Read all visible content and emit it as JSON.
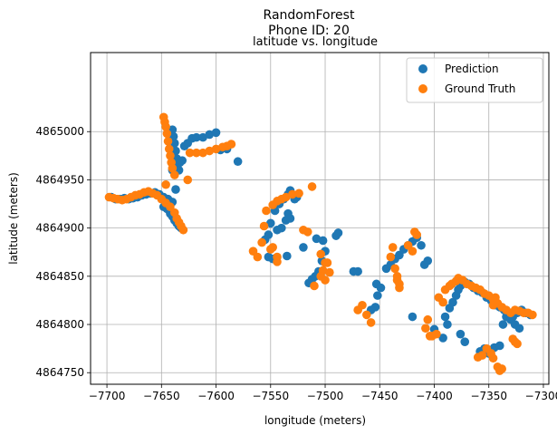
{
  "chart_data": {
    "type": "scatter",
    "suptitle_line1": "RandomForest",
    "suptitle_line2": "Phone ID: 20",
    "title": "latitude vs. longitude",
    "xlabel": "longitude (meters)",
    "ylabel": "latitude (meters)",
    "xlim": [
      -7715,
      -7295
    ],
    "ylim": [
      4864738,
      4865082
    ],
    "xticks": [
      -7700,
      -7650,
      -7600,
      -7550,
      -7500,
      -7450,
      -7400,
      -7350,
      -7300
    ],
    "yticks": [
      4864750,
      4864800,
      4864850,
      4864900,
      4864950,
      4865000
    ],
    "grid": true,
    "legend": "top-right",
    "series": [
      {
        "name": "Prediction",
        "color": "#1f77b4",
        "points": [
          [
            -7696,
            4864932
          ],
          [
            -7692,
            4864930
          ],
          [
            -7688,
            4864930
          ],
          [
            -7684,
            4864931
          ],
          [
            -7680,
            4864930
          ],
          [
            -7676,
            4864931
          ],
          [
            -7672,
            4864932
          ],
          [
            -7668,
            4864934
          ],
          [
            -7664,
            4864935
          ],
          [
            -7660,
            4864936
          ],
          [
            -7656,
            4864937
          ],
          [
            -7652,
            4864935
          ],
          [
            -7648,
            4864932
          ],
          [
            -7644,
            4864930
          ],
          [
            -7640,
            4864927
          ],
          [
            -7645,
            4864920
          ],
          [
            -7648,
            4864922
          ],
          [
            -7642,
            4864915
          ],
          [
            -7640,
            4864912
          ],
          [
            -7638,
            4864908
          ],
          [
            -7636,
            4864905
          ],
          [
            -7634,
            4864902
          ],
          [
            -7632,
            4864900
          ],
          [
            -7640,
            4865002
          ],
          [
            -7639,
            4864995
          ],
          [
            -7638,
            4864988
          ],
          [
            -7637,
            4864980
          ],
          [
            -7636,
            4864972
          ],
          [
            -7635,
            4864966
          ],
          [
            -7634,
            4864960
          ],
          [
            -7633,
            4864968
          ],
          [
            -7631,
            4864970
          ],
          [
            -7629,
            4864985
          ],
          [
            -7626,
            4864988
          ],
          [
            -7622,
            4864993
          ],
          [
            -7618,
            4864994
          ],
          [
            -7612,
            4864994
          ],
          [
            -7606,
            4864997
          ],
          [
            -7600,
            4864999
          ],
          [
            -7596,
            4864981
          ],
          [
            -7590,
            4864982
          ],
          [
            -7580,
            4864969
          ],
          [
            -7640,
            4864960
          ],
          [
            -7637,
            4864940
          ],
          [
            -7555,
            4864888
          ],
          [
            -7552,
            4864893
          ],
          [
            -7550,
            4864905
          ],
          [
            -7546,
            4864918
          ],
          [
            -7542,
            4864925
          ],
          [
            -7538,
            4864930
          ],
          [
            -7534,
            4864935
          ],
          [
            -7532,
            4864939
          ],
          [
            -7528,
            4864930
          ],
          [
            -7526,
            4864932
          ],
          [
            -7540,
            4864900
          ],
          [
            -7544,
            4864898
          ],
          [
            -7536,
            4864908
          ],
          [
            -7534,
            4864915
          ],
          [
            -7532,
            4864910
          ],
          [
            -7552,
            4864870
          ],
          [
            -7548,
            4864868
          ],
          [
            -7535,
            4864871
          ],
          [
            -7520,
            4864880
          ],
          [
            -7508,
            4864889
          ],
          [
            -7502,
            4864887
          ],
          [
            -7500,
            4864876
          ],
          [
            -7503,
            4864866
          ],
          [
            -7506,
            4864855
          ],
          [
            -7509,
            4864850
          ],
          [
            -7512,
            4864847
          ],
          [
            -7515,
            4864843
          ],
          [
            -7490,
            4864892
          ],
          [
            -7488,
            4864895
          ],
          [
            -7474,
            4864855
          ],
          [
            -7470,
            4864855
          ],
          [
            -7453,
            4864842
          ],
          [
            -7449,
            4864838
          ],
          [
            -7452,
            4864830
          ],
          [
            -7454,
            4864818
          ],
          [
            -7458,
            4864815
          ],
          [
            -7444,
            4864858
          ],
          [
            -7440,
            4864862
          ],
          [
            -7436,
            4864868
          ],
          [
            -7432,
            4864872
          ],
          [
            -7428,
            4864878
          ],
          [
            -7424,
            4864882
          ],
          [
            -7420,
            4864886
          ],
          [
            -7416,
            4864890
          ],
          [
            -7412,
            4864882
          ],
          [
            -7409,
            4864862
          ],
          [
            -7406,
            4864866
          ],
          [
            -7420,
            4864808
          ],
          [
            -7390,
            4864808
          ],
          [
            -7386,
            4864817
          ],
          [
            -7383,
            4864823
          ],
          [
            -7380,
            4864830
          ],
          [
            -7378,
            4864836
          ],
          [
            -7376,
            4864840
          ],
          [
            -7372,
            4864844
          ],
          [
            -7368,
            4864842
          ],
          [
            -7364,
            4864838
          ],
          [
            -7360,
            4864835
          ],
          [
            -7356,
            4864833
          ],
          [
            -7352,
            4864828
          ],
          [
            -7348,
            4864825
          ],
          [
            -7344,
            4864820
          ],
          [
            -7340,
            4864818
          ],
          [
            -7336,
            4864815
          ],
          [
            -7332,
            4864812
          ],
          [
            -7328,
            4864808
          ],
          [
            -7324,
            4864812
          ],
          [
            -7320,
            4864815
          ],
          [
            -7316,
            4864812
          ],
          [
            -7312,
            4864810
          ],
          [
            -7392,
            4864786
          ],
          [
            -7388,
            4864800
          ],
          [
            -7376,
            4864790
          ],
          [
            -7372,
            4864782
          ],
          [
            -7350,
            4864770
          ],
          [
            -7345,
            4864776
          ],
          [
            -7340,
            4864778
          ],
          [
            -7337,
            4864800
          ],
          [
            -7334,
            4864808
          ],
          [
            -7330,
            4864805
          ],
          [
            -7326,
            4864800
          ],
          [
            -7322,
            4864796
          ],
          [
            -7358,
            4864772
          ],
          [
            -7354,
            4864775
          ],
          [
            -7400,
            4864795
          ]
        ]
      },
      {
        "name": "Ground Truth",
        "color": "#ff7f0e",
        "points": [
          [
            -7698,
            4864932
          ],
          [
            -7694,
            4864931
          ],
          [
            -7690,
            4864930
          ],
          [
            -7686,
            4864929
          ],
          [
            -7682,
            4864930
          ],
          [
            -7678,
            4864932
          ],
          [
            -7674,
            4864934
          ],
          [
            -7670,
            4864935
          ],
          [
            -7666,
            4864937
          ],
          [
            -7662,
            4864938
          ],
          [
            -7658,
            4864936
          ],
          [
            -7654,
            4864934
          ],
          [
            -7650,
            4864930
          ],
          [
            -7646,
            4864926
          ],
          [
            -7642,
            4864922
          ],
          [
            -7638,
            4864916
          ],
          [
            -7636,
            4864910
          ],
          [
            -7634,
            4864906
          ],
          [
            -7632,
            4864902
          ],
          [
            -7630,
            4864898
          ],
          [
            -7648,
            4865015
          ],
          [
            -7647,
            4865010
          ],
          [
            -7646,
            4865005
          ],
          [
            -7645,
            4864998
          ],
          [
            -7644,
            4864990
          ],
          [
            -7643,
            4864982
          ],
          [
            -7642,
            4864975
          ],
          [
            -7641,
            4864968
          ],
          [
            -7640,
            4864962
          ],
          [
            -7638,
            4864955
          ],
          [
            -7646,
            4864945
          ],
          [
            -7626,
            4864950
          ],
          [
            -7624,
            4864978
          ],
          [
            -7618,
            4864978
          ],
          [
            -7612,
            4864978
          ],
          [
            -7606,
            4864980
          ],
          [
            -7600,
            4864982
          ],
          [
            -7594,
            4864984
          ],
          [
            -7590,
            4864985
          ],
          [
            -7586,
            4864987
          ],
          [
            -7566,
            4864876
          ],
          [
            -7562,
            4864870
          ],
          [
            -7558,
            4864885
          ],
          [
            -7556,
            4864902
          ],
          [
            -7554,
            4864918
          ],
          [
            -7548,
            4864924
          ],
          [
            -7544,
            4864928
          ],
          [
            -7540,
            4864930
          ],
          [
            -7536,
            4864932
          ],
          [
            -7530,
            4864935
          ],
          [
            -7524,
            4864936
          ],
          [
            -7512,
            4864943
          ],
          [
            -7548,
            4864880
          ],
          [
            -7550,
            4864878
          ],
          [
            -7544,
            4864870
          ],
          [
            -7544,
            4864865
          ],
          [
            -7516,
            4864896
          ],
          [
            -7520,
            4864898
          ],
          [
            -7504,
            4864873
          ],
          [
            -7500,
            4864864
          ],
          [
            -7502,
            4864856
          ],
          [
            -7504,
            4864850
          ],
          [
            -7500,
            4864846
          ],
          [
            -7496,
            4864854
          ],
          [
            -7498,
            4864864
          ],
          [
            -7510,
            4864840
          ],
          [
            -7470,
            4864815
          ],
          [
            -7466,
            4864820
          ],
          [
            -7462,
            4864810
          ],
          [
            -7458,
            4864802
          ],
          [
            -7440,
            4864870
          ],
          [
            -7438,
            4864880
          ],
          [
            -7436,
            4864858
          ],
          [
            -7434,
            4864850
          ],
          [
            -7432,
            4864838
          ],
          [
            -7424,
            4864882
          ],
          [
            -7420,
            4864876
          ],
          [
            -7418,
            4864896
          ],
          [
            -7416,
            4864893
          ],
          [
            -7434,
            4864846
          ],
          [
            -7432,
            4864842
          ],
          [
            -7402,
            4864788
          ],
          [
            -7404,
            4864788
          ],
          [
            -7398,
            4864790
          ],
          [
            -7396,
            4864828
          ],
          [
            -7392,
            4864823
          ],
          [
            -7390,
            4864836
          ],
          [
            -7386,
            4864840
          ],
          [
            -7384,
            4864842
          ],
          [
            -7380,
            4864845
          ],
          [
            -7378,
            4864848
          ],
          [
            -7374,
            4864846
          ],
          [
            -7370,
            4864842
          ],
          [
            -7366,
            4864840
          ],
          [
            -7362,
            4864838
          ],
          [
            -7358,
            4864836
          ],
          [
            -7354,
            4864832
          ],
          [
            -7350,
            4864830
          ],
          [
            -7346,
            4864826
          ],
          [
            -7342,
            4864822
          ],
          [
            -7338,
            4864818
          ],
          [
            -7334,
            4864815
          ],
          [
            -7330,
            4864812
          ],
          [
            -7326,
            4864815
          ],
          [
            -7322,
            4864814
          ],
          [
            -7318,
            4864812
          ],
          [
            -7314,
            4864812
          ],
          [
            -7310,
            4864810
          ],
          [
            -7406,
            4864805
          ],
          [
            -7408,
            4864796
          ],
          [
            -7352,
            4864775
          ],
          [
            -7348,
            4864770
          ],
          [
            -7346,
            4864765
          ],
          [
            -7342,
            4864756
          ],
          [
            -7340,
            4864752
          ],
          [
            -7338,
            4864754
          ],
          [
            -7328,
            4864785
          ],
          [
            -7326,
            4864782
          ],
          [
            -7324,
            4864780
          ],
          [
            -7360,
            4864766
          ],
          [
            -7356,
            4864768
          ],
          [
            -7346,
            4864820
          ],
          [
            -7344,
            4864828
          ]
        ]
      }
    ]
  }
}
